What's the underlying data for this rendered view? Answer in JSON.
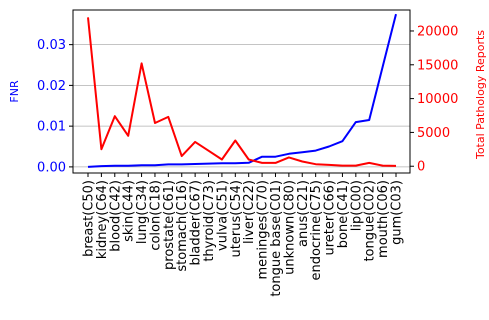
{
  "chart_data": {
    "type": "line",
    "title": "",
    "xlabel": "",
    "categories": [
      "breast(C50)",
      "kidney(C64)",
      "blood(C42)",
      "skin(C44)",
      "lung(C34)",
      "colon(C18)",
      "prostate(C61)",
      "stomach(C16)",
      "bladder(C67)",
      "thyroid(C73)",
      "vulva(C51)",
      "uterus(C54)",
      "liver(C22)",
      "meninges(C70)",
      "tongue base(C01)",
      "unknown(C80)",
      "anus(C21)",
      "endocrine(C75)",
      "ureter(C66)",
      "bone(C41)",
      "lip(C00)",
      "tongue(C02)",
      "mouth(C06)",
      "gum(C03)"
    ],
    "y_left": {
      "label": "FNR",
      "color": "#0000ff",
      "ylim": [
        -0.0015,
        0.0385
      ],
      "ticks": [
        0.0,
        0.01,
        0.02,
        0.03
      ],
      "tick_labels": [
        "0.00",
        "0.01",
        "0.02",
        "0.03"
      ]
    },
    "y_right": {
      "label": "Total Pathology Reports",
      "color": "#ff0000",
      "ylim": [
        -1000,
        23100
      ],
      "ticks": [
        0,
        5000,
        10000,
        15000,
        20000
      ],
      "tick_labels": [
        "0",
        "5000",
        "10000",
        "15000",
        "20000"
      ]
    },
    "grid": "horizontal",
    "series": [
      {
        "axis": "left",
        "color": "#0000ff",
        "values": [
          0.0,
          0.0002,
          0.0003,
          0.0003,
          0.0004,
          0.0004,
          0.0006,
          0.0006,
          0.0007,
          0.0008,
          0.0009,
          0.0009,
          0.001,
          0.0025,
          0.0025,
          0.0032,
          0.0036,
          0.004,
          0.005,
          0.0063,
          0.011,
          0.0115,
          0.0245,
          0.0375
        ]
      },
      {
        "axis": "right",
        "color": "#ff0000",
        "values": [
          22000,
          2500,
          7400,
          4500,
          15200,
          6400,
          7300,
          1500,
          3600,
          2300,
          1000,
          3800,
          1000,
          500,
          500,
          1300,
          700,
          300,
          200,
          100,
          100,
          500,
          100,
          50
        ]
      }
    ]
  }
}
